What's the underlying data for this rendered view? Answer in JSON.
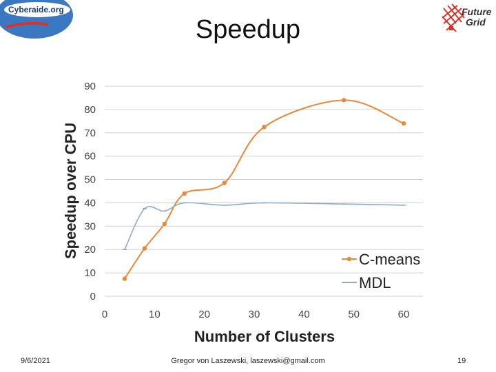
{
  "slide": {
    "title": "Speedup",
    "date": "9/6/2021",
    "author": "Gregor von Laszewski, laszewski@gmail.com",
    "page_number": "19",
    "logo_left_text": "Cyberaide.org",
    "logo_right_line1": "Future",
    "logo_right_line2": "Grid"
  },
  "colors": {
    "cmeans": "#e8883a",
    "mdl": "#8faacb",
    "grid": "#d0d0d0",
    "logo_blue": "#2e6db5"
  },
  "chart_data": {
    "type": "line",
    "xlabel": "Number of Clusters",
    "ylabel": "Speedup over CPU",
    "xlim": [
      0,
      60
    ],
    "ylim": [
      0,
      90
    ],
    "xticks": [
      0,
      10,
      20,
      30,
      40,
      50,
      60
    ],
    "yticks": [
      0,
      10,
      20,
      30,
      40,
      50,
      60,
      70,
      80,
      90
    ],
    "grid": "horizontal",
    "legend_position": "bottom-right",
    "series": [
      {
        "name": "C-means",
        "x": [
          4,
          8,
          12,
          16,
          24,
          32,
          48,
          60
        ],
        "y": [
          7.5,
          20.5,
          31,
          44,
          48.5,
          72.5,
          84,
          74
        ]
      },
      {
        "name": "MDL",
        "x": [
          4,
          8,
          12,
          16,
          24,
          32,
          48,
          60
        ],
        "y": [
          20,
          37.5,
          36.5,
          40,
          39,
          40,
          39.5,
          39
        ]
      }
    ]
  }
}
